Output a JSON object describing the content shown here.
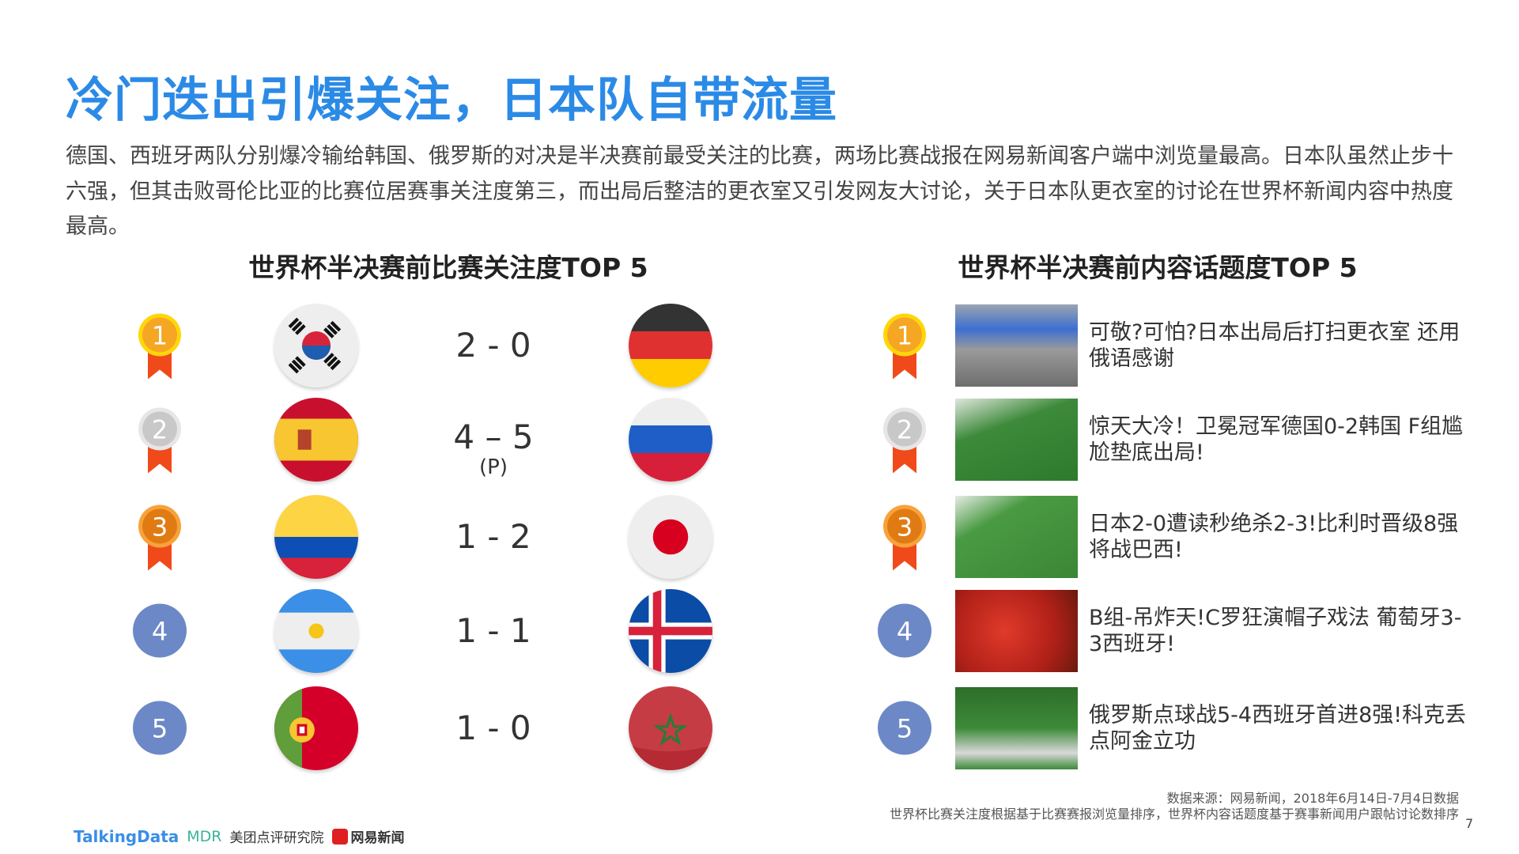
{
  "title": "冷门迭出引爆关注，日本队自带流量",
  "intro": "德国、西班牙两队分别爆冷输给韩国、俄罗斯的对决是半决赛前最受关注的比赛，两场比赛战报在网易新闻客户端中浏览量最高。日本队虽然止步十六强，但其击败哥伦比亚的比赛位居赛事关注度第三，而出局后整洁的更衣室又引发网友大讨论，关于日本队更衣室的讨论在世界杯新闻内容中热度最高。",
  "left": {
    "heading": "世界杯半决赛前比赛关注度TOP 5",
    "rows": [
      {
        "rank": "1",
        "medal": "gold",
        "team1": "korea-flag",
        "score": "2 - 0",
        "pen": "",
        "team2": "germany-flag"
      },
      {
        "rank": "2",
        "medal": "silver",
        "team1": "spain-flag",
        "score": "4 – 5",
        "pen": "(P)",
        "team2": "russia-flag"
      },
      {
        "rank": "3",
        "medal": "bronze",
        "team1": "colombia-flag",
        "score": "1 - 2",
        "pen": "",
        "team2": "japan-flag"
      },
      {
        "rank": "4",
        "medal": "plain",
        "team1": "argentina-flag",
        "score": "1 - 1",
        "pen": "",
        "team2": "iceland-flag"
      },
      {
        "rank": "5",
        "medal": "plain",
        "team1": "portugal-flag",
        "score": "1 - 0",
        "pen": "",
        "team2": "morocco-flag"
      }
    ]
  },
  "right": {
    "heading": "世界杯半决赛前内容话题度TOP 5",
    "rows": [
      {
        "rank": "1",
        "medal": "gold",
        "text": "可敬?可怕?日本出局后打扫更衣室 还用俄语感谢"
      },
      {
        "rank": "2",
        "medal": "silver",
        "text": "惊天大冷！卫冕冠军德国0-2韩国 F组尴尬垫底出局!"
      },
      {
        "rank": "3",
        "medal": "bronze",
        "text": "日本2-0遭读秒绝杀2-3!比利时晋级8强将战巴西!"
      },
      {
        "rank": "4",
        "medal": "plain",
        "text": "B组-吊炸天!C罗狂演帽子戏法 葡萄牙3-3西班牙!"
      },
      {
        "rank": "5",
        "medal": "plain",
        "text": "俄罗斯点球战5-4西班牙首进8强!科克丢点阿金立功"
      }
    ]
  },
  "footer": {
    "source": "数据来源：网易新闻，2018年6月14日-7月4日数据",
    "note": "世界杯比赛关注度根据基于比赛赛报浏览量排序，世界杯内容话题度基于赛事新闻用户跟帖讨论数排序",
    "page": "7"
  },
  "logos": {
    "talkingdata": "TalkingData",
    "mdr": "MDR",
    "meituan": "美团点评研究院",
    "netease": "网易新闻"
  },
  "colors": {
    "title": "#2b8ae6",
    "gold": "#f5a623",
    "silver": "#c8c8c8",
    "bronze": "#e07b14",
    "plain": "#6d88c6",
    "ribbon": "#f04a1a"
  }
}
